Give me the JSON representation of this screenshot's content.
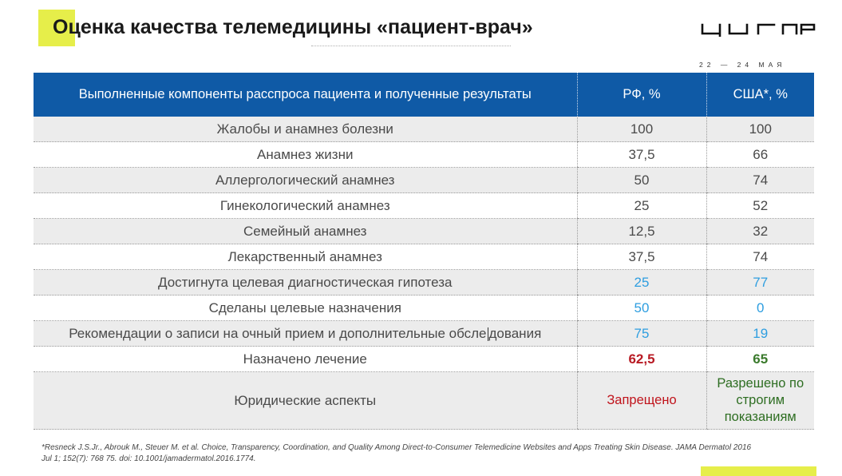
{
  "header": {
    "title": "Оценка качества телемедицины «пациент-врач»",
    "logo_text": "ЦИПР",
    "date": "22 — 24 МАЯ"
  },
  "table": {
    "columns": [
      "Выполненные компоненты расспроса пациента и полученные результаты",
      "РФ, %",
      "США*, %"
    ],
    "rows": [
      {
        "label": "Жалобы и анамнез болезни",
        "rf": "100",
        "usa": "100"
      },
      {
        "label": "Анамнез жизни",
        "rf": "37,5",
        "usa": "66"
      },
      {
        "label": "Аллергологический анамнез",
        "rf": "50",
        "usa": "74"
      },
      {
        "label": "Гинекологический анамнез",
        "rf": "25",
        "usa": "52"
      },
      {
        "label": "Семейный анамнез",
        "rf": "12,5",
        "usa": "32"
      },
      {
        "label": "Лекарственный анамнез",
        "rf": "37,5",
        "usa": "74"
      },
      {
        "label": "Достигнута целевая диагностическая гипотеза",
        "rf": "25",
        "usa": "77"
      },
      {
        "label": "Сделаны целевые назначения",
        "rf": "50",
        "usa": "0"
      },
      {
        "label_part1": "Рекомендации о записи на очный прием и дополнительные обсле",
        "label_part2": "дования",
        "rf": "75",
        "usa": "19"
      },
      {
        "label": "Назначено лечение",
        "rf": "62,5",
        "usa": "65"
      },
      {
        "label": "Юридические аспекты",
        "rf": "Запрещено",
        "usa_line1": "Разрешено по",
        "usa_line2": "строгим",
        "usa_line3": "показаниям"
      }
    ]
  },
  "footnote": {
    "line1": "*Resneck J.S.Jr., Abrouk M., Steuer M. et al. Choice, Transparency, Coordination, and Quality Among Direct-to-Consumer Telemedicine Websites and Apps Treating Skin Disease. JAMA Dermatol 2016",
    "line2": "Jul 1; 152(7): 768 75. doi: 10.1001/jamadermatol.2016.1774."
  },
  "colors": {
    "header_blue": "#0f5aa6",
    "accent_yellow": "#e6ee4a",
    "value_blue": "#2e9ee0",
    "value_red": "#b81b24",
    "value_green": "#3a7a2c"
  }
}
